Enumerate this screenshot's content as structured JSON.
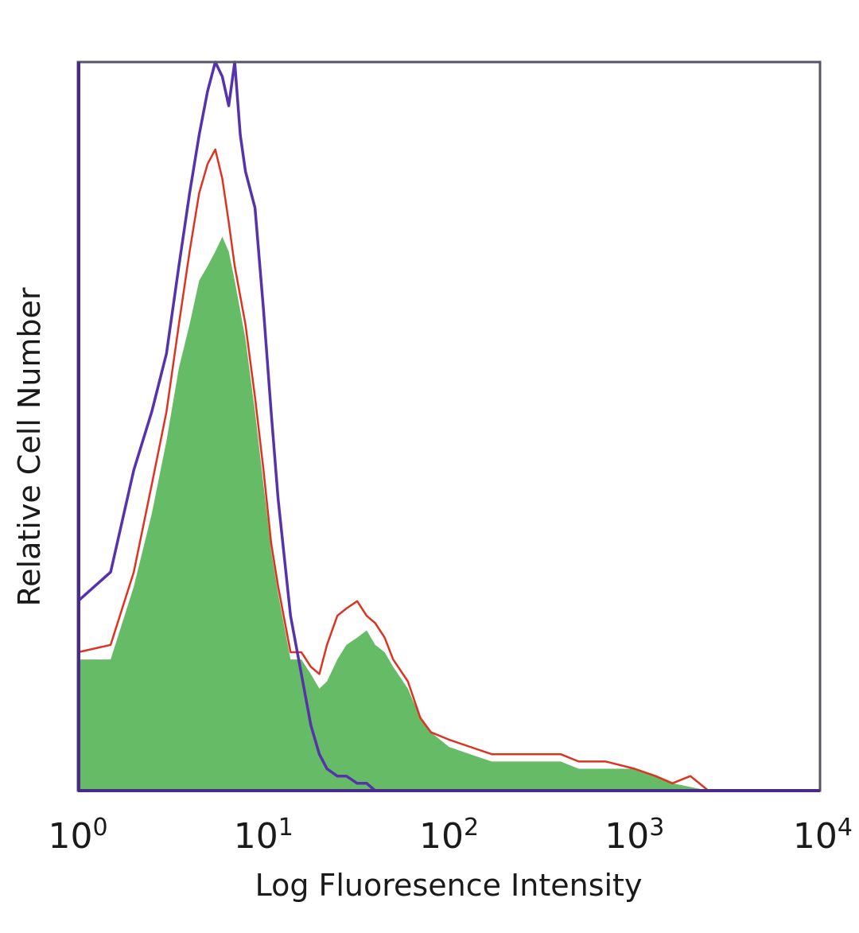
{
  "chart_data": {
    "type": "area",
    "xlabel": "Log Fluoresence Intensity",
    "ylabel": "Relative Cell Number",
    "xscale": "log",
    "xlim": [
      1,
      10000
    ],
    "ylim": [
      0,
      1
    ],
    "x_ticks": [
      {
        "base": "10",
        "exp": "0",
        "value": 1
      },
      {
        "base": "10",
        "exp": "1",
        "value": 10
      },
      {
        "base": "10",
        "exp": "2",
        "value": 100
      },
      {
        "base": "10",
        "exp": "3",
        "value": 1000
      },
      {
        "base": "10",
        "exp": "4",
        "value": 10000
      }
    ],
    "grid": false,
    "legend": "none",
    "series": [
      {
        "style": "filled",
        "color": "#66bb66",
        "x": [
          1.0,
          1.5,
          2.0,
          2.5,
          3.0,
          3.5,
          4.0,
          4.5,
          5.0,
          5.5,
          6.0,
          6.5,
          7.0,
          8.0,
          9.0,
          10.0,
          11.0,
          12.0,
          14.0,
          16.0,
          18.0,
          20.0,
          22.0,
          25.0,
          28.0,
          32.0,
          36.0,
          40.0,
          45.0,
          50.0,
          60.0,
          70.0,
          80.0,
          100.0,
          130.0,
          170.0,
          220.0,
          300.0,
          400.0,
          500.0,
          700.0,
          1000.0,
          1300.0,
          1600.0,
          2000.0,
          2500.0
        ],
        "y": [
          0.18,
          0.18,
          0.28,
          0.38,
          0.48,
          0.58,
          0.64,
          0.7,
          0.72,
          0.74,
          0.76,
          0.74,
          0.7,
          0.62,
          0.52,
          0.42,
          0.33,
          0.27,
          0.18,
          0.18,
          0.16,
          0.14,
          0.15,
          0.18,
          0.2,
          0.21,
          0.22,
          0.2,
          0.19,
          0.17,
          0.14,
          0.1,
          0.08,
          0.06,
          0.05,
          0.04,
          0.04,
          0.04,
          0.04,
          0.03,
          0.03,
          0.03,
          0.02,
          0.01,
          0.005,
          0.0
        ]
      },
      {
        "style": "line",
        "color": "#dd3322",
        "x": [
          1.0,
          1.5,
          2.0,
          2.5,
          3.0,
          3.5,
          4.0,
          4.5,
          5.0,
          5.5,
          6.0,
          6.5,
          7.0,
          8.0,
          9.0,
          10.0,
          11.0,
          12.0,
          14.0,
          16.0,
          18.0,
          20.0,
          22.0,
          25.0,
          28.0,
          32.0,
          36.0,
          40.0,
          45.0,
          50.0,
          60.0,
          70.0,
          80.0,
          100.0,
          130.0,
          170.0,
          220.0,
          300.0,
          400.0,
          500.0,
          700.0,
          1000.0,
          1300.0,
          1600.0,
          2000.0,
          2500.0
        ],
        "y": [
          0.19,
          0.2,
          0.3,
          0.42,
          0.52,
          0.64,
          0.74,
          0.82,
          0.86,
          0.88,
          0.84,
          0.78,
          0.72,
          0.64,
          0.54,
          0.44,
          0.34,
          0.28,
          0.19,
          0.19,
          0.17,
          0.16,
          0.2,
          0.24,
          0.25,
          0.26,
          0.24,
          0.23,
          0.21,
          0.18,
          0.15,
          0.1,
          0.08,
          0.07,
          0.06,
          0.05,
          0.05,
          0.05,
          0.05,
          0.04,
          0.04,
          0.03,
          0.02,
          0.01,
          0.02,
          0.0
        ]
      },
      {
        "style": "line",
        "color": "#5533aa",
        "x": [
          1.0,
          1.5,
          2.0,
          2.5,
          3.0,
          3.5,
          4.0,
          4.5,
          5.0,
          5.5,
          6.0,
          6.5,
          7.0,
          7.5,
          8.0,
          9.0,
          10.0,
          11.0,
          12.0,
          14.0,
          16.0,
          18.0,
          20.0,
          22.0,
          25.0,
          28.0,
          32.0,
          36.0,
          40.0,
          45.0
        ],
        "y": [
          0.26,
          0.3,
          0.44,
          0.52,
          0.6,
          0.72,
          0.82,
          0.9,
          0.96,
          1.0,
          0.98,
          0.94,
          1.0,
          0.9,
          0.85,
          0.8,
          0.66,
          0.52,
          0.4,
          0.24,
          0.16,
          0.09,
          0.05,
          0.03,
          0.02,
          0.02,
          0.01,
          0.01,
          0.0,
          0.0
        ]
      }
    ]
  }
}
